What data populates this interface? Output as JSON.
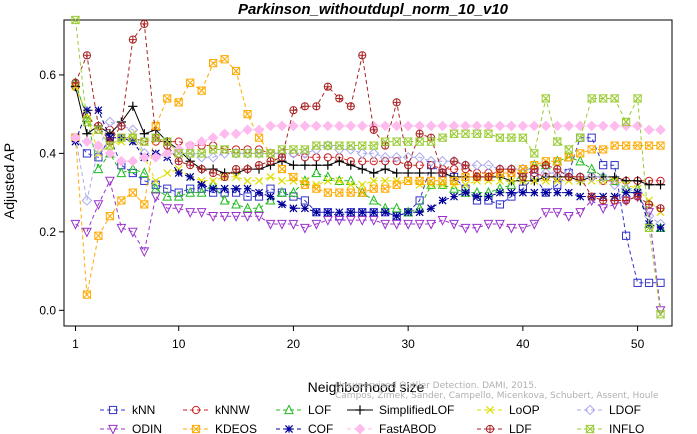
{
  "chart_data": {
    "type": "line",
    "title": "Parkinson_withoutdupl_norm_10_v10",
    "xlabel": "Neighborhood size",
    "ylabel": "Adjusted AP",
    "xlim": [
      0,
      53
    ],
    "ylim": [
      -0.04,
      0.74
    ],
    "xticks": [
      1,
      10,
      20,
      30,
      40,
      50
    ],
    "yticks": [
      0.0,
      0.2,
      0.4,
      0.6
    ],
    "ytick_labels": [
      "0.0",
      "0.2",
      "0.4",
      "0.6"
    ],
    "x": [
      1,
      2,
      3,
      4,
      5,
      6,
      7,
      8,
      9,
      10,
      11,
      12,
      13,
      14,
      15,
      16,
      17,
      18,
      19,
      20,
      21,
      22,
      23,
      24,
      25,
      26,
      27,
      28,
      29,
      30,
      31,
      32,
      33,
      34,
      35,
      36,
      37,
      38,
      39,
      40,
      41,
      42,
      43,
      44,
      45,
      46,
      47,
      48,
      49,
      50,
      51,
      52
    ],
    "legend_position": "bottom",
    "series": [
      {
        "name": "kNN",
        "color": "#3333cc",
        "dash": "4,3",
        "marker": "square",
        "values": [
          0.44,
          0.4,
          0.39,
          0.44,
          0.37,
          0.35,
          0.33,
          0.32,
          0.31,
          0.3,
          0.31,
          0.31,
          0.3,
          0.3,
          0.3,
          0.29,
          0.29,
          0.31,
          0.3,
          0.29,
          0.28,
          0.25,
          0.25,
          0.24,
          0.25,
          0.25,
          0.25,
          0.25,
          0.24,
          0.25,
          0.28,
          0.37,
          0.35,
          0.34,
          0.31,
          0.28,
          0.28,
          0.27,
          0.29,
          0.31,
          0.34,
          0.3,
          0.32,
          0.35,
          0.44,
          0.44,
          0.37,
          0.37,
          0.19,
          0.07,
          0.07,
          0.07
        ]
      },
      {
        "name": "kNNW",
        "color": "#cc2222",
        "dash": "4,3",
        "marker": "circle",
        "values": [
          0.57,
          0.5,
          0.46,
          0.46,
          0.44,
          0.44,
          0.43,
          0.43,
          0.43,
          0.43,
          0.42,
          0.42,
          0.42,
          0.41,
          0.41,
          0.41,
          0.41,
          0.4,
          0.4,
          0.4,
          0.39,
          0.39,
          0.39,
          0.39,
          0.38,
          0.38,
          0.38,
          0.38,
          0.38,
          0.37,
          0.37,
          0.37,
          0.36,
          0.36,
          0.36,
          0.35,
          0.35,
          0.35,
          0.35,
          0.35,
          0.35,
          0.34,
          0.34,
          0.34,
          0.34,
          0.34,
          0.33,
          0.33,
          0.33,
          0.33,
          0.33,
          0.33
        ]
      },
      {
        "name": "LOF",
        "color": "#22bb22",
        "dash": "4,3",
        "marker": "triangle-up",
        "values": [
          0.58,
          0.49,
          0.36,
          0.4,
          0.35,
          0.36,
          0.35,
          0.31,
          0.29,
          0.29,
          0.3,
          0.3,
          0.32,
          0.28,
          0.27,
          0.26,
          0.26,
          0.28,
          0.3,
          0.3,
          0.33,
          0.35,
          0.34,
          0.33,
          0.33,
          0.3,
          0.28,
          0.26,
          0.26,
          0.25,
          0.26,
          0.32,
          0.32,
          0.31,
          0.3,
          0.3,
          0.3,
          0.31,
          0.32,
          0.35,
          0.37,
          0.37,
          0.38,
          0.39,
          0.38,
          0.36,
          0.34,
          0.33,
          0.31,
          0.31,
          0.22,
          0.21
        ]
      },
      {
        "name": "SimplifiedLOF",
        "color": "#000000",
        "dash": "",
        "marker": "plus",
        "values": [
          0.57,
          0.45,
          0.47,
          0.45,
          0.48,
          0.52,
          0.45,
          0.46,
          0.43,
          0.41,
          0.38,
          0.36,
          0.36,
          0.35,
          0.35,
          0.36,
          0.36,
          0.37,
          0.38,
          0.37,
          0.37,
          0.37,
          0.37,
          0.38,
          0.37,
          0.36,
          0.35,
          0.36,
          0.35,
          0.35,
          0.35,
          0.35,
          0.35,
          0.34,
          0.34,
          0.34,
          0.34,
          0.34,
          0.33,
          0.33,
          0.33,
          0.34,
          0.34,
          0.34,
          0.33,
          0.34,
          0.34,
          0.34,
          0.33,
          0.33,
          0.32,
          0.32
        ]
      },
      {
        "name": "LoOP",
        "color": "#dddd00",
        "dash": "4,3",
        "marker": "x",
        "values": [
          0.57,
          0.5,
          0.4,
          0.42,
          0.43,
          0.45,
          0.39,
          0.33,
          0.35,
          0.36,
          0.34,
          0.33,
          0.33,
          0.34,
          0.34,
          0.33,
          0.33,
          0.34,
          0.33,
          0.33,
          0.33,
          0.32,
          0.33,
          0.33,
          0.32,
          0.32,
          0.33,
          0.33,
          0.33,
          0.33,
          0.32,
          0.32,
          0.32,
          0.32,
          0.32,
          0.33,
          0.33,
          0.33,
          0.33,
          0.33,
          0.33,
          0.33,
          0.33,
          0.33,
          0.33,
          0.33,
          0.33,
          0.33,
          0.32,
          0.31,
          0.28,
          0.25
        ]
      },
      {
        "name": "LDOF",
        "color": "#aaaaee",
        "dash": "4,3",
        "marker": "diamond",
        "values": [
          0.44,
          0.28,
          0.41,
          0.48,
          0.47,
          0.46,
          0.4,
          0.39,
          0.4,
          0.4,
          0.4,
          0.39,
          0.39,
          0.4,
          0.4,
          0.4,
          0.4,
          0.4,
          0.4,
          0.4,
          0.4,
          0.41,
          0.42,
          0.41,
          0.41,
          0.4,
          0.4,
          0.39,
          0.39,
          0.39,
          0.39,
          0.38,
          0.38,
          0.38,
          0.37,
          0.37,
          0.37,
          0.36,
          0.36,
          0.36,
          0.36,
          0.35,
          0.35,
          0.35,
          0.34,
          0.34,
          0.34,
          0.32,
          0.31,
          0.3,
          0.24,
          0.22
        ]
      },
      {
        "name": "ODIN",
        "color": "#9933cc",
        "dash": "4,3",
        "marker": "triangle-down",
        "values": [
          0.22,
          0.2,
          0.27,
          0.33,
          0.21,
          0.2,
          0.15,
          0.29,
          0.26,
          0.26,
          0.25,
          0.25,
          0.24,
          0.24,
          0.24,
          0.24,
          0.24,
          0.22,
          0.22,
          0.22,
          0.21,
          0.22,
          0.23,
          0.23,
          0.23,
          0.23,
          0.23,
          0.22,
          0.22,
          0.22,
          0.22,
          0.22,
          0.23,
          0.22,
          0.21,
          0.21,
          0.22,
          0.22,
          0.21,
          0.21,
          0.22,
          0.25,
          0.25,
          0.24,
          0.25,
          0.28,
          0.26,
          0.27,
          0.28,
          0.29,
          0.25,
          0.0
        ]
      },
      {
        "name": "KDEOS",
        "color": "#ffaa00",
        "dash": "4,3",
        "marker": "square-x",
        "values": [
          0.44,
          0.04,
          0.19,
          0.24,
          0.28,
          0.3,
          0.27,
          0.47,
          0.54,
          0.53,
          0.58,
          0.56,
          0.63,
          0.64,
          0.61,
          0.5,
          0.44,
          0.4,
          0.36,
          0.34,
          0.32,
          0.31,
          0.3,
          0.3,
          0.3,
          0.3,
          0.31,
          0.31,
          0.32,
          0.33,
          0.33,
          0.33,
          0.33,
          0.33,
          0.34,
          0.34,
          0.34,
          0.35,
          0.35,
          0.36,
          0.37,
          0.38,
          0.38,
          0.39,
          0.4,
          0.41,
          0.41,
          0.42,
          0.42,
          0.42,
          0.42,
          0.42
        ]
      },
      {
        "name": "COF",
        "color": "#000099",
        "dash": "4,3",
        "marker": "asterisk",
        "values": [
          0.43,
          0.51,
          0.51,
          0.44,
          0.44,
          0.43,
          0.39,
          0.4,
          0.39,
          0.35,
          0.34,
          0.32,
          0.31,
          0.31,
          0.31,
          0.31,
          0.3,
          0.29,
          0.27,
          0.26,
          0.26,
          0.25,
          0.25,
          0.25,
          0.25,
          0.25,
          0.25,
          0.25,
          0.24,
          0.25,
          0.25,
          0.26,
          0.28,
          0.29,
          0.3,
          0.29,
          0.29,
          0.3,
          0.3,
          0.3,
          0.3,
          0.3,
          0.3,
          0.3,
          0.29,
          0.29,
          0.29,
          0.29,
          0.3,
          0.3,
          0.22,
          0.21
        ]
      },
      {
        "name": "FastABOD",
        "color": "#ffbbee",
        "dash": "4,3",
        "marker": "diamond-filled",
        "values": [
          0.44,
          0.43,
          0.42,
          0.4,
          0.38,
          0.38,
          0.39,
          0.39,
          0.4,
          0.41,
          0.42,
          0.43,
          0.44,
          0.45,
          0.45,
          0.46,
          0.46,
          0.47,
          0.47,
          0.47,
          0.47,
          0.47,
          0.47,
          0.47,
          0.47,
          0.47,
          0.47,
          0.47,
          0.47,
          0.47,
          0.47,
          0.47,
          0.47,
          0.47,
          0.47,
          0.47,
          0.47,
          0.47,
          0.47,
          0.47,
          0.47,
          0.47,
          0.47,
          0.47,
          0.47,
          0.47,
          0.47,
          0.47,
          0.47,
          0.47,
          0.46,
          0.46
        ]
      },
      {
        "name": "LDF",
        "color": "#aa2222",
        "dash": "4,3",
        "marker": "circle-plus",
        "values": [
          0.58,
          0.65,
          0.47,
          0.43,
          0.47,
          0.69,
          0.73,
          0.44,
          0.42,
          0.38,
          0.37,
          0.36,
          0.35,
          0.34,
          0.36,
          0.36,
          0.37,
          0.38,
          0.39,
          0.51,
          0.52,
          0.52,
          0.57,
          0.54,
          0.52,
          0.65,
          0.46,
          0.42,
          0.53,
          0.37,
          0.45,
          0.44,
          0.35,
          0.38,
          0.37,
          0.34,
          0.34,
          0.36,
          0.36,
          0.34,
          0.36,
          0.37,
          0.36,
          0.34,
          0.34,
          0.29,
          0.28,
          0.28,
          0.28,
          0.29,
          0.27,
          0.26
        ]
      },
      {
        "name": "INFLO",
        "color": "#99cc33",
        "dash": "4,3",
        "marker": "hourglass",
        "values": [
          0.74,
          0.48,
          0.46,
          0.42,
          0.44,
          0.44,
          0.43,
          0.44,
          0.43,
          0.4,
          0.4,
          0.4,
          0.41,
          0.41,
          0.4,
          0.4,
          0.4,
          0.4,
          0.41,
          0.41,
          0.41,
          0.42,
          0.42,
          0.42,
          0.42,
          0.42,
          0.42,
          0.43,
          0.43,
          0.43,
          0.43,
          0.43,
          0.44,
          0.45,
          0.45,
          0.45,
          0.45,
          0.44,
          0.44,
          0.44,
          0.4,
          0.54,
          0.43,
          0.41,
          0.44,
          0.54,
          0.54,
          0.54,
          0.48,
          0.54,
          0.21,
          -0.01
        ]
      }
    ]
  },
  "watermark": {
    "line1": "Unsupervised Outlier Detection. DAMI, 2015.",
    "line2": "Campos, Zimek, Sander, Campello, Micenkova, Schubert, Assent, Houle"
  }
}
